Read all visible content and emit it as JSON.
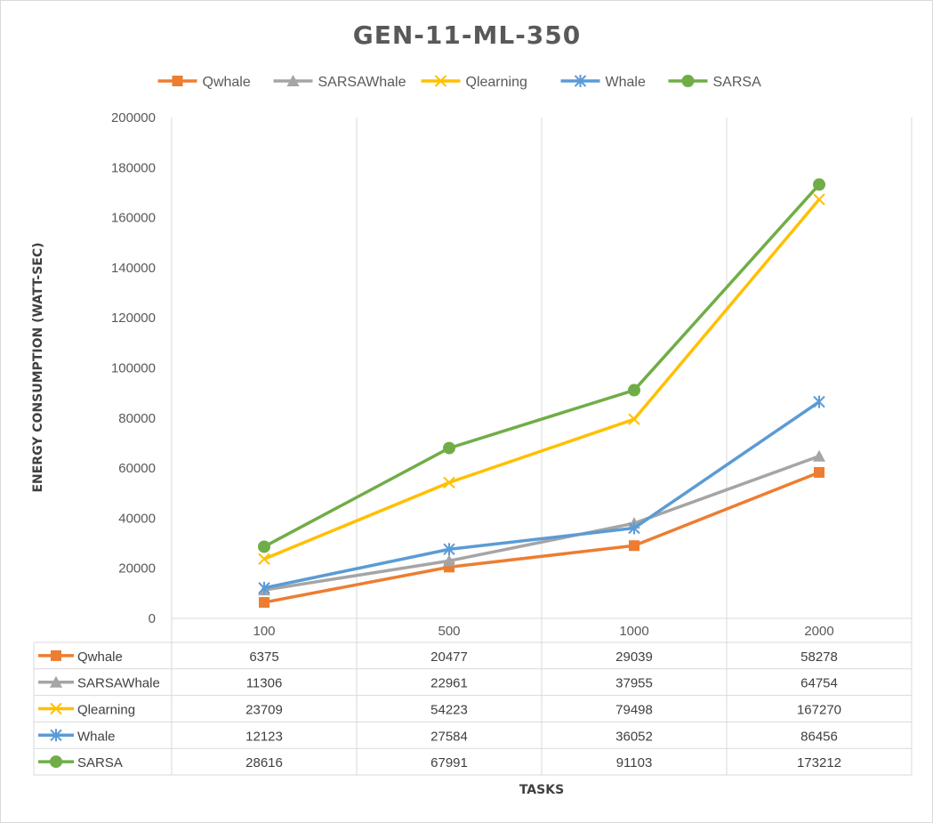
{
  "chart_data": {
    "type": "line",
    "title": "GEN-11-ML-350",
    "xlabel": "TASKS",
    "ylabel": "ENERGY CONSUMPTION (WATT-SEC)",
    "categories": [
      "100",
      "500",
      "1000",
      "2000"
    ],
    "ylim": [
      0,
      200000
    ],
    "yticks": [
      "0",
      "20000",
      "40000",
      "60000",
      "80000",
      "100000",
      "120000",
      "140000",
      "160000",
      "180000",
      "200000"
    ],
    "grid": "vertical",
    "legend": "top",
    "data_table": true,
    "series": [
      {
        "name": "Qwhale",
        "color": "#ED7D31",
        "marker": "square",
        "values": [
          6375,
          20477,
          29039,
          58278
        ]
      },
      {
        "name": "SARSAWhale",
        "color": "#A5A5A5",
        "marker": "triangle",
        "values": [
          11306,
          22961,
          37955,
          64754
        ]
      },
      {
        "name": "Qlearning",
        "color": "#FFC000",
        "marker": "x",
        "values": [
          23709,
          54223,
          79498,
          167270
        ]
      },
      {
        "name": "Whale",
        "color": "#5B9BD5",
        "marker": "star",
        "values": [
          12123,
          27584,
          36052,
          86456
        ]
      },
      {
        "name": "SARSA",
        "color": "#70AD47",
        "marker": "circle",
        "values": [
          28616,
          67991,
          91103,
          173212
        ]
      }
    ]
  }
}
